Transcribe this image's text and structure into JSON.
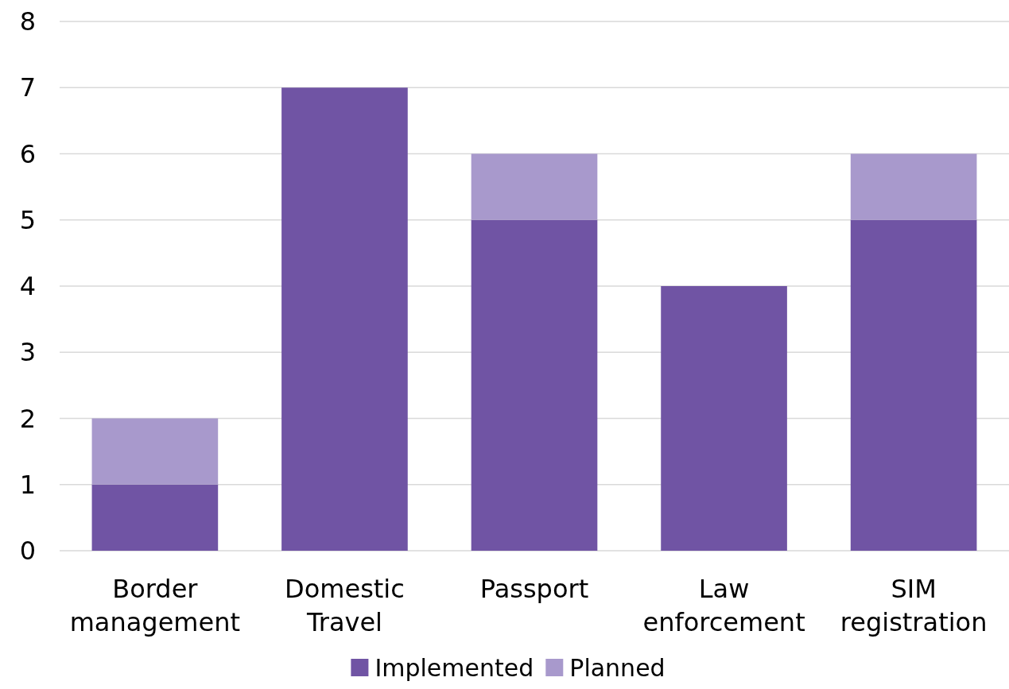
{
  "chart_data": {
    "type": "bar",
    "stacked": true,
    "categories": [
      "Border management",
      "Domestic Travel",
      "Passport",
      "Law enforcement",
      "SIM registration"
    ],
    "series": [
      {
        "name": "Implemented",
        "color": "#7054a4",
        "values": [
          1,
          7,
          5,
          4,
          5
        ]
      },
      {
        "name": "Planned",
        "color": "#a899cc",
        "values": [
          1,
          0,
          1,
          0,
          1
        ]
      }
    ],
    "ylim": [
      0,
      8
    ],
    "yticks": [
      0,
      1,
      2,
      3,
      4,
      5,
      6,
      7,
      8
    ],
    "grid": "y",
    "legend": "bottom"
  }
}
